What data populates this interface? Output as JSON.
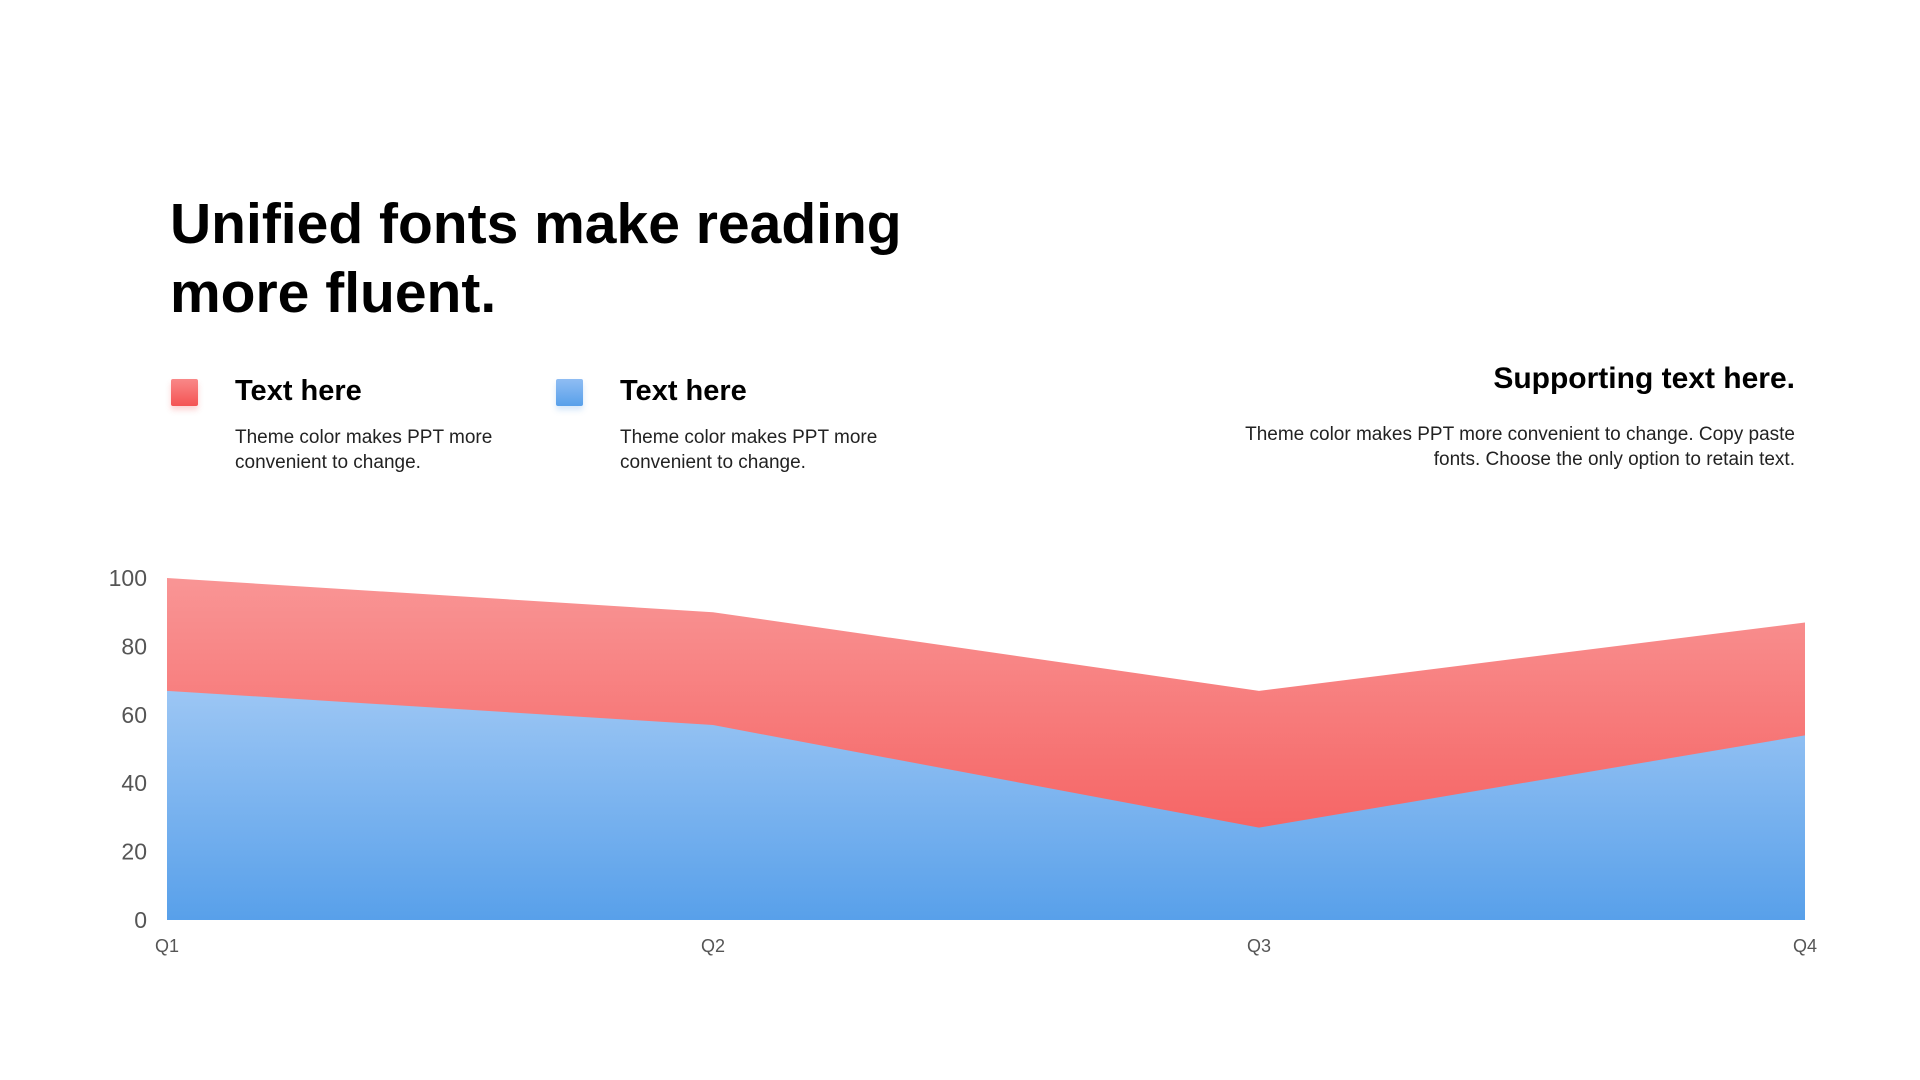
{
  "slide": {
    "title": "Unified fonts make reading more fluent.",
    "legend": [
      {
        "title": "Text here",
        "desc": "Theme color makes PPT more convenient to change.",
        "color": "#f45454"
      },
      {
        "title": "Text here",
        "desc": "Theme color makes PPT more convenient to change.",
        "color": "#58a0ea"
      }
    ],
    "support": {
      "title": "Supporting text here.",
      "desc": "Theme color makes PPT more convenient to change. Copy paste fonts. Choose the only option to retain text."
    }
  },
  "chart_data": {
    "type": "area",
    "categories": [
      "Q1",
      "Q2",
      "Q3",
      "Q4"
    ],
    "series": [
      {
        "values": [
          67,
          57,
          27,
          54
        ],
        "color": "#58a0ea"
      },
      {
        "values": [
          100,
          90,
          67,
          87
        ],
        "color": "#f45454"
      }
    ],
    "y_ticks": [
      "0",
      "20",
      "40",
      "60",
      "80",
      "100"
    ],
    "ylim": [
      0,
      100
    ],
    "grid": false,
    "legend": "top-left"
  }
}
